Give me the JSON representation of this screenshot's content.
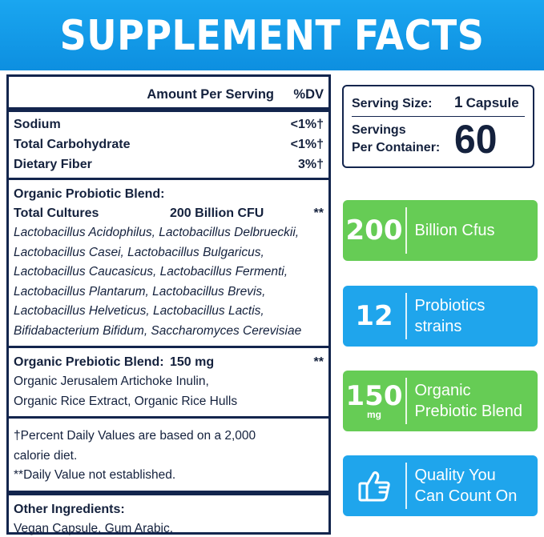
{
  "banner": {
    "title": "SUPPLEMENT FACTS"
  },
  "facts": {
    "header": {
      "amount": "Amount Per Serving",
      "dv": "%DV"
    },
    "nutrients": [
      {
        "name": "Sodium",
        "dv": "<1%†"
      },
      {
        "name": "Total Carbohydrate",
        "dv": "<1%†"
      },
      {
        "name": "Dietary Fiber",
        "dv": "3%†"
      }
    ],
    "probiotic": {
      "title": "Organic Probiotic Blend:",
      "cultures_label": "Total Cultures",
      "cultures_amount": "200 Billion CFU",
      "cultures_dv": "**",
      "strains": [
        "Lactobacillus Acidophilus, Lactobacillus Delbrueckii,",
        "Lactobacillus Casei, Lactobacillus Bulgaricus,",
        "Lactobacillus Caucasicus, Lactobacillus Fermenti,",
        "Lactobacillus Plantarum, Lactobacillus Brevis,",
        "Lactobacillus Helveticus, Lactobacillus Lactis,",
        "Bifidabacterium Bifidum, Saccharomyces Cerevisiae"
      ]
    },
    "prebiotic": {
      "title": "Organic Prebiotic Blend:",
      "amount": "150 mg",
      "dv": "**",
      "lines": [
        "Organic Jerusalem Artichoke Inulin,",
        "Organic Rice Extract, Organic Rice Hulls"
      ]
    },
    "footnotes": [
      "†Percent Daily Values are based on a 2,000",
      "calorie diet.",
      "**Daily Value not established."
    ],
    "other": {
      "title": "Other Ingredients:",
      "text": "Vegan Capsule, Gum Arabic."
    }
  },
  "serving": {
    "size_label": "Serving Size:",
    "size_value": "1",
    "size_unit": "Capsule",
    "servings_label_line1": "Servings",
    "servings_label_line2": "Per Container:",
    "servings_value": "60"
  },
  "cards": [
    {
      "number": "200",
      "text_line1": "Billion Cfus",
      "text_line2": "",
      "color": "#66cc55"
    },
    {
      "number": "12",
      "text_line1": "Probiotics",
      "text_line2": "strains",
      "color": "#1fa5ec"
    },
    {
      "number": "150",
      "number_sub": "mg",
      "text_line1": "Organic",
      "text_line2": "Prebiotic Blend",
      "color": "#66cc55"
    },
    {
      "icon": "thumbs-up-icon",
      "text_line1": "Quality You",
      "text_line2": "Can Count On",
      "color": "#1fa5ec"
    }
  ],
  "colors": {
    "banner": "#1aa6f0",
    "navy": "#13254d",
    "green": "#66cc55",
    "blue": "#1fa5ec"
  }
}
